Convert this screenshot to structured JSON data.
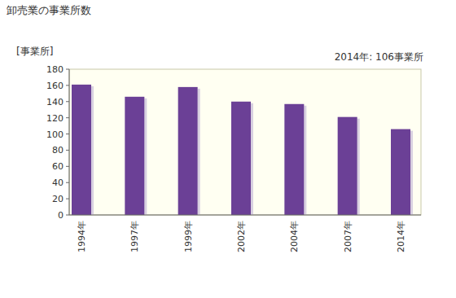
{
  "chart_data": {
    "type": "bar",
    "title": "卸売業の事業所数",
    "y_label": "[事業所]",
    "annotation": "2014年: 106事業所",
    "categories": [
      "1994年",
      "1997年",
      "1999年",
      "2002年",
      "2004年",
      "2007年",
      "2014年"
    ],
    "values": [
      161,
      146,
      158,
      140,
      137,
      121,
      106
    ],
    "color": "#6b4096",
    "ylim": [
      0,
      180
    ],
    "yticks": [
      0,
      20,
      40,
      60,
      80,
      100,
      120,
      140,
      160,
      180
    ],
    "grid": false
  }
}
